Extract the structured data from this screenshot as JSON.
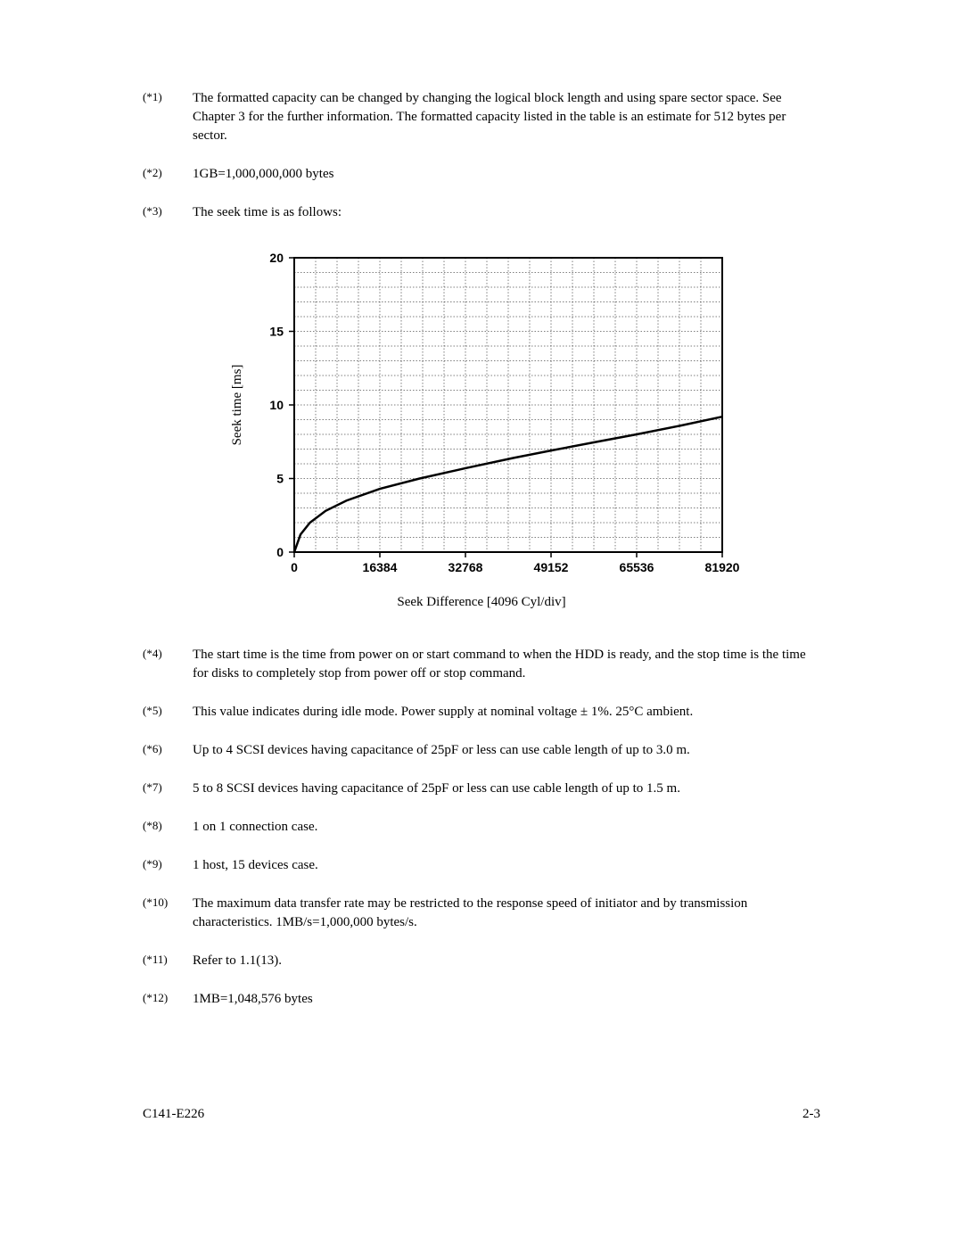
{
  "notes": {
    "n1": {
      "label": "(*1)",
      "text": "The formatted capacity can be changed by changing the logical block length and using spare sector space.  See Chapter 3 for the further information.  The formatted capacity listed in the table is an estimate for 512 bytes per sector."
    },
    "n2": {
      "label": "(*2)",
      "text": "1GB=1,000,000,000 bytes"
    },
    "n3": {
      "label": "(*3)",
      "text": "The seek time is as follows:"
    },
    "n4": {
      "label": "(*4)",
      "text": "The start time is the time from power on or start command to when the HDD is ready, and the stop time is the time for disks to completely stop from power off or stop command."
    },
    "n5": {
      "label": "(*5)",
      "text": "This value indicates during idle mode.  Power supply at nominal voltage ± 1%. 25°C ambient."
    },
    "n6": {
      "label": "(*6)",
      "text": "Up to 4 SCSI devices having capacitance of 25pF or less can use cable length of up to 3.0 m."
    },
    "n7": {
      "label": "(*7)",
      "text": "5 to 8 SCSI devices having capacitance of 25pF or less can use cable length of up to 1.5 m."
    },
    "n8": {
      "label": "(*8)",
      "text": "1 on 1 connection case."
    },
    "n9": {
      "label": "(*9)",
      "text": "1 host, 15 devices case."
    },
    "n10": {
      "label": "(*10)",
      "text": "The maximum data transfer rate may be restricted to the response speed of initiator and by transmission characteristics.  1MB/s=1,000,000 bytes/s."
    },
    "n11": {
      "label": "(*11)",
      "text": "Refer to 1.1(13)."
    },
    "n12": {
      "label": "(*12)",
      "text": "1MB=1,048,576 bytes"
    }
  },
  "chart": {
    "type": "line",
    "y_axis_title": "Seek time [ms]",
    "x_caption": "Seek Difference [4096 Cyl/div]",
    "x_ticks": [
      "0",
      "16384",
      "32768",
      "49152",
      "65536",
      "81920"
    ],
    "y_ticks": [
      "0",
      "5",
      "10",
      "15",
      "20"
    ],
    "xlim": [
      0,
      81920
    ],
    "ylim": [
      0,
      20
    ],
    "x_major_step": 16384,
    "x_minor_step": 4096,
    "y_major_step": 5,
    "y_minor_step": 1,
    "background_color": "#ffffff",
    "grid_minor_color": "#000000",
    "grid_major_color": "#000000",
    "curve_color": "#000000",
    "curve_width": 2.5,
    "data_points": [
      [
        0,
        0
      ],
      [
        1200,
        1.2
      ],
      [
        3000,
        2.0
      ],
      [
        6000,
        2.8
      ],
      [
        10000,
        3.5
      ],
      [
        16384,
        4.3
      ],
      [
        24000,
        5.0
      ],
      [
        32768,
        5.7
      ],
      [
        42000,
        6.4
      ],
      [
        49152,
        6.9
      ],
      [
        58000,
        7.5
      ],
      [
        65536,
        8.0
      ],
      [
        74000,
        8.6
      ],
      [
        81920,
        9.2
      ]
    ]
  },
  "footer": {
    "left": "C141-E226",
    "right": "2-3"
  }
}
